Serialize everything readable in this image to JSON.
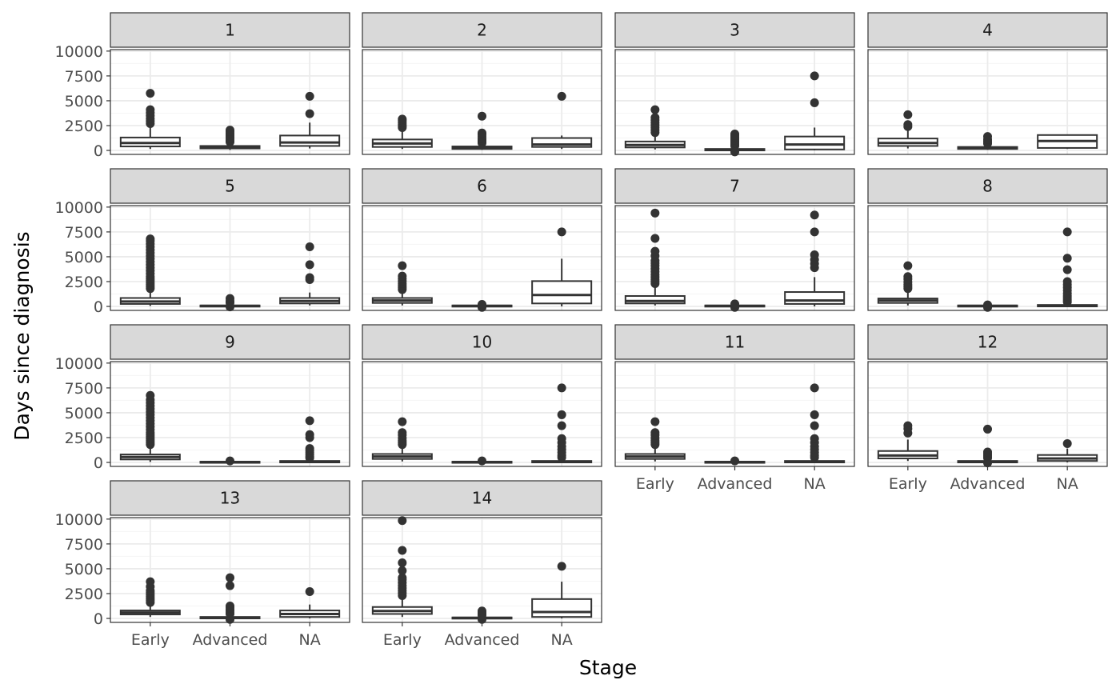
{
  "chart_data": {
    "type": "boxplot",
    "facet_layout": "wrap 4 columns",
    "xlabel": "Stage",
    "ylabel": "Days since diagnosis",
    "categories": [
      "Early",
      "Advanced",
      "NA"
    ],
    "ylim": [
      0,
      10000
    ],
    "y_ticks": [
      0,
      2500,
      5000,
      7500,
      10000
    ],
    "y_tick_labels": [
      "0",
      "2500",
      "5000",
      "7500",
      "10000"
    ],
    "grid": true,
    "theme": "bw",
    "colors": {
      "strip_fill": "#d9d9d9",
      "panel_border": "#333333",
      "grid_major": "#ebebeb",
      "grid_minor": "#f5f5f5",
      "box_line": "#333333",
      "outlier": "#333333"
    },
    "facets": [
      {
        "label": "1",
        "boxes": [
          {
            "category": "Early",
            "q1": 400,
            "median": 750,
            "q3": 1300,
            "lower": 150,
            "upper": 2500,
            "outliers": [
              2700,
              2950,
              3200,
              3500,
              3800,
              4100,
              5750
            ]
          },
          {
            "category": "Advanced",
            "q1": 200,
            "median": 300,
            "q3": 450,
            "lower": 50,
            "upper": 700,
            "outliers": [
              850,
              1000,
              1150,
              1300,
              1450,
              1600,
              1750,
              1900,
              2050
            ]
          },
          {
            "category": "NA",
            "q1": 450,
            "median": 800,
            "q3": 1500,
            "lower": 200,
            "upper": 2800,
            "outliers": [
              3700,
              5450
            ]
          }
        ]
      },
      {
        "label": "2",
        "boxes": [
          {
            "category": "Early",
            "q1": 350,
            "median": 700,
            "q3": 1100,
            "lower": 150,
            "upper": 2100,
            "outliers": [
              2300,
              2450,
              2600,
              2800,
              3000,
              3150
            ]
          },
          {
            "category": "Advanced",
            "q1": 150,
            "median": 250,
            "q3": 400,
            "lower": 50,
            "upper": 600,
            "outliers": [
              750,
              900,
              1050,
              1200,
              1400,
              1600,
              1750,
              3450
            ]
          },
          {
            "category": "NA",
            "q1": 350,
            "median": 600,
            "q3": 1250,
            "lower": 150,
            "upper": 1500,
            "outliers": [
              5450
            ]
          }
        ]
      },
      {
        "label": "3",
        "boxes": [
          {
            "category": "Early",
            "q1": 300,
            "median": 550,
            "q3": 900,
            "lower": 100,
            "upper": 1600,
            "outliers": [
              1800,
              2050,
              2300,
              2550,
              2800,
              3050,
              3300,
              4100
            ]
          },
          {
            "category": "Advanced",
            "q1": 0,
            "median": 50,
            "q3": 150,
            "lower": 0,
            "upper": 300,
            "outliers": [
              -150,
              450,
              600,
              750,
              900,
              1050,
              1200,
              1350,
              1500,
              1650
            ]
          },
          {
            "category": "NA",
            "q1": 100,
            "median": 600,
            "q3": 1400,
            "lower": 0,
            "upper": 2300,
            "outliers": [
              4800,
              7500
            ]
          }
        ]
      },
      {
        "label": "4",
        "boxes": [
          {
            "category": "Early",
            "q1": 450,
            "median": 750,
            "q3": 1200,
            "lower": 200,
            "upper": 2200,
            "outliers": [
              2400,
              2600,
              3600
            ]
          },
          {
            "category": "Advanced",
            "q1": 150,
            "median": 250,
            "q3": 350,
            "lower": 50,
            "upper": 500,
            "outliers": [
              700,
              900,
              1100,
              1400
            ]
          },
          {
            "category": "NA",
            "q1": 250,
            "median": 950,
            "q3": 1550,
            "lower": 150,
            "upper": 1600,
            "outliers": []
          }
        ]
      },
      {
        "label": "5",
        "boxes": [
          {
            "category": "Early",
            "q1": 250,
            "median": 500,
            "q3": 850,
            "lower": 50,
            "upper": 1500,
            "outliers": [
              1800,
              2000,
              2200,
              2400,
              2600,
              2800,
              3000,
              3300,
              3600,
              3900,
              4200,
              4500,
              4800,
              5100,
              5400,
              5700,
              6000,
              6300,
              6600,
              6800
            ]
          },
          {
            "category": "Advanced",
            "q1": 0,
            "median": 50,
            "q3": 100,
            "lower": 0,
            "upper": 200,
            "outliers": [
              -50,
              350,
              550,
              800
            ]
          },
          {
            "category": "NA",
            "q1": 300,
            "median": 550,
            "q3": 850,
            "lower": 100,
            "upper": 1400,
            "outliers": [
              2700,
              2900,
              4200,
              6000
            ]
          }
        ]
      },
      {
        "label": "6",
        "boxes": [
          {
            "category": "Early",
            "q1": 350,
            "median": 600,
            "q3": 850,
            "lower": 100,
            "upper": 1500,
            "outliers": [
              1700,
              1900,
              2100,
              2300,
              2550,
              2800,
              3050,
              4100
            ]
          },
          {
            "category": "Advanced",
            "q1": 0,
            "median": 50,
            "q3": 100,
            "lower": 0,
            "upper": 150,
            "outliers": [
              -100,
              200
            ]
          },
          {
            "category": "NA",
            "q1": 300,
            "median": 1150,
            "q3": 2550,
            "lower": 0,
            "upper": 4800,
            "outliers": [
              7500
            ]
          }
        ]
      },
      {
        "label": "7",
        "boxes": [
          {
            "category": "Early",
            "q1": 300,
            "median": 550,
            "q3": 1050,
            "lower": 100,
            "upper": 2000,
            "outliers": [
              2300,
              2500,
              2700,
              2950,
              3200,
              3500,
              3800,
              4100,
              4350,
              4600,
              5100,
              5550,
              6850,
              9400
            ]
          },
          {
            "category": "Advanced",
            "q1": 0,
            "median": 50,
            "q3": 100,
            "lower": 0,
            "upper": 150,
            "outliers": [
              -100,
              250
            ]
          },
          {
            "category": "NA",
            "q1": 250,
            "median": 600,
            "q3": 1450,
            "lower": 0,
            "upper": 2950,
            "outliers": [
              3900,
              4300,
              4700,
              5200,
              7500,
              9200
            ]
          }
        ]
      },
      {
        "label": "8",
        "boxes": [
          {
            "category": "Early",
            "q1": 350,
            "median": 600,
            "q3": 800,
            "lower": 100,
            "upper": 1500,
            "outliers": [
              1800,
              2000,
              2200,
              2450,
              2750,
              3000,
              4100
            ]
          },
          {
            "category": "Advanced",
            "q1": 0,
            "median": 50,
            "q3": 100,
            "lower": 0,
            "upper": 150,
            "outliers": [
              -100,
              150
            ]
          },
          {
            "category": "NA",
            "q1": 0,
            "median": 50,
            "q3": 150,
            "lower": 0,
            "upper": 300,
            "outliers": [
              450,
              650,
              850,
              1050,
              1300,
              1600,
              1900,
              2200,
              2500,
              3700,
              4850,
              7500
            ]
          }
        ]
      },
      {
        "label": "9",
        "boxes": [
          {
            "category": "Early",
            "q1": 300,
            "median": 550,
            "q3": 800,
            "lower": 50,
            "upper": 1500,
            "outliers": [
              1800,
              2000,
              2200,
              2400,
              2600,
              2800,
              3000,
              3300,
              3600,
              3900,
              4200,
              4500,
              4800,
              5100,
              5400,
              5700,
              6000,
              6300,
              6750
            ]
          },
          {
            "category": "Advanced",
            "q1": 0,
            "median": 30,
            "q3": 80,
            "lower": 0,
            "upper": 100,
            "outliers": [
              150
            ]
          },
          {
            "category": "NA",
            "q1": 0,
            "median": 50,
            "q3": 150,
            "lower": 0,
            "upper": 300,
            "outliers": [
              450,
              600,
              800,
              1000,
              1200,
              1400,
              2500,
              2800,
              4200
            ]
          }
        ]
      },
      {
        "label": "10",
        "boxes": [
          {
            "category": "Early",
            "q1": 350,
            "median": 600,
            "q3": 850,
            "lower": 100,
            "upper": 1500,
            "outliers": [
              1800,
              2000,
              2200,
              2450,
              2750,
              3000,
              4100
            ]
          },
          {
            "category": "Advanced",
            "q1": 0,
            "median": 30,
            "q3": 80,
            "lower": 0,
            "upper": 100,
            "outliers": [
              150
            ]
          },
          {
            "category": "NA",
            "q1": 0,
            "median": 50,
            "q3": 150,
            "lower": 0,
            "upper": 300,
            "outliers": [
              500,
              700,
              1000,
              1300,
              1600,
              2000,
              2400,
              3700,
              4800,
              7500
            ]
          }
        ]
      },
      {
        "label": "11",
        "boxes": [
          {
            "category": "Early",
            "q1": 350,
            "median": 600,
            "q3": 850,
            "lower": 100,
            "upper": 1500,
            "outliers": [
              1800,
              2000,
              2200,
              2450,
              2750,
              3000,
              4100
            ]
          },
          {
            "category": "Advanced",
            "q1": 0,
            "median": 30,
            "q3": 80,
            "lower": 0,
            "upper": 100,
            "outliers": [
              150
            ]
          },
          {
            "category": "NA",
            "q1": 0,
            "median": 50,
            "q3": 150,
            "lower": 0,
            "upper": 300,
            "outliers": [
              500,
              700,
              1000,
              1300,
              1600,
              2000,
              2400,
              3700,
              4800,
              7500
            ]
          }
        ]
      },
      {
        "label": "12",
        "boxes": [
          {
            "category": "Early",
            "q1": 400,
            "median": 700,
            "q3": 1150,
            "lower": 150,
            "upper": 2300,
            "outliers": [
              2950,
              3400,
              3700
            ]
          },
          {
            "category": "Advanced",
            "q1": 0,
            "median": 50,
            "q3": 150,
            "lower": 0,
            "upper": 300,
            "outliers": [
              -50,
              450,
              650,
              850,
              1050,
              3350
            ]
          },
          {
            "category": "NA",
            "q1": 150,
            "median": 400,
            "q3": 750,
            "lower": 0,
            "upper": 1400,
            "outliers": [
              1900
            ]
          }
        ]
      },
      {
        "label": "13",
        "boxes": [
          {
            "category": "Early",
            "q1": 400,
            "median": 600,
            "q3": 800,
            "lower": 150,
            "upper": 1400,
            "outliers": [
              1600,
              1800,
              2000,
              2200,
              2400,
              2600,
              2800,
              3200,
              3700
            ]
          },
          {
            "category": "Advanced",
            "q1": 0,
            "median": 50,
            "q3": 150,
            "lower": 0,
            "upper": 300,
            "outliers": [
              -100,
              450,
              650,
              850,
              1050,
              1250,
              3300,
              4100
            ]
          },
          {
            "category": "NA",
            "q1": 150,
            "median": 450,
            "q3": 800,
            "lower": 0,
            "upper": 1400,
            "outliers": [
              2700
            ]
          }
        ]
      },
      {
        "label": "14",
        "boxes": [
          {
            "category": "Early",
            "q1": 450,
            "median": 750,
            "q3": 1150,
            "lower": 150,
            "upper": 2100,
            "outliers": [
              2300,
              2550,
              2800,
              3050,
              3300,
              3600,
              3900,
              4100,
              4800,
              5600,
              6850,
              9850
            ]
          },
          {
            "category": "Advanced",
            "q1": 0,
            "median": 50,
            "q3": 100,
            "lower": 0,
            "upper": 200,
            "outliers": [
              -100,
              300,
              450,
              600,
              750
            ]
          },
          {
            "category": "NA",
            "q1": 150,
            "median": 650,
            "q3": 1950,
            "lower": 0,
            "upper": 3700,
            "outliers": [
              5250
            ]
          }
        ]
      }
    ]
  }
}
